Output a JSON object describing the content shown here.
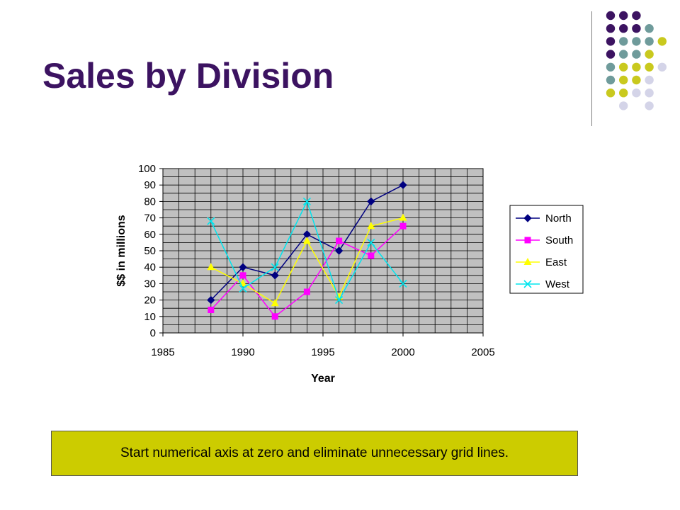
{
  "slide": {
    "title": "Sales by Division",
    "note": "Start numerical axis at zero and eliminate unnecessary grid lines.",
    "title_color": "#3c1361",
    "note_bg": "#cccc00"
  },
  "decoration": {
    "dot_grid": [
      [
        "purple",
        "purple",
        "purple",
        null,
        null
      ],
      [
        "purple",
        "purple",
        "purple",
        "teal",
        null
      ],
      [
        "purple",
        "teal",
        "teal",
        "teal",
        "olive"
      ],
      [
        "purple",
        "teal",
        "teal",
        "olive",
        null
      ],
      [
        "teal",
        "olive",
        "olive",
        "olive",
        "lavender"
      ],
      [
        "teal",
        "olive",
        "olive",
        "lavender",
        null
      ],
      [
        "olive",
        "olive",
        "lavender",
        "lavender",
        null
      ],
      [
        null,
        "lavender",
        null,
        "lavender",
        null
      ]
    ],
    "colors": {
      "purple": "#3c1361",
      "teal": "#6f9b9b",
      "olive": "#c9c91e",
      "lavender": "#d4d4e8"
    }
  },
  "chart_data": {
    "type": "line",
    "xlabel": "Year",
    "ylabel": "$$ in millions",
    "xlim": [
      1985,
      2005
    ],
    "ylim": [
      0,
      100
    ],
    "xticks": [
      1985,
      1990,
      1995,
      2000,
      2005
    ],
    "yticks": [
      0,
      10,
      20,
      30,
      40,
      50,
      60,
      70,
      80,
      90,
      100
    ],
    "grid": true,
    "plot_background": "#c0c0c0",
    "legend_position": "right",
    "series": [
      {
        "name": "North",
        "color": "#000080",
        "marker": "diamond",
        "x": [
          1988,
          1990,
          1992,
          1994,
          1996,
          1998,
          2000
        ],
        "y": [
          20,
          40,
          35,
          60,
          50,
          80,
          90
        ]
      },
      {
        "name": "South",
        "color": "#ff00ff",
        "marker": "square",
        "x": [
          1988,
          1990,
          1992,
          1994,
          1996,
          1998,
          2000
        ],
        "y": [
          14,
          35,
          10,
          25,
          56,
          47,
          65
        ]
      },
      {
        "name": "East",
        "color": "#ffff00",
        "marker": "triangle",
        "x": [
          1988,
          1990,
          1992,
          1994,
          1996,
          1998,
          2000
        ],
        "y": [
          40,
          30,
          18,
          56,
          22,
          65,
          70
        ]
      },
      {
        "name": "West",
        "color": "#00e5ee",
        "marker": "x",
        "x": [
          1988,
          1990,
          1992,
          1994,
          1996,
          1998,
          2000
        ],
        "y": [
          68,
          27,
          40,
          80,
          20,
          55,
          30
        ]
      }
    ]
  }
}
